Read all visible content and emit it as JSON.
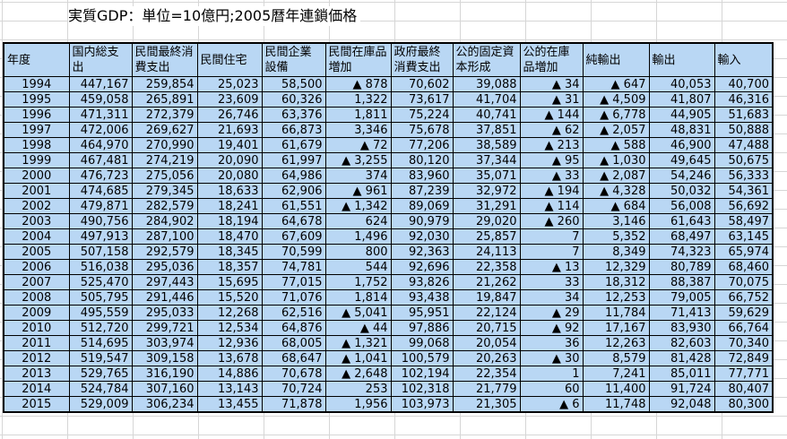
{
  "title": "実質GDP：単位=10億円;2005暦年連鎖価格",
  "headers": [
    "年度",
    "国内総支出",
    "民間最終消費支出",
    "民間住宅",
    "民間企業設備",
    "民間在庫品増加",
    "政府最終消費支出",
    "公的固定資本形成",
    "公的在庫品増加",
    "純輸出",
    "輸出",
    "輸入"
  ],
  "rows": [
    [
      "1994",
      "447,167",
      "259,854",
      "25,023",
      "58,500",
      "▲ 878",
      "70,602",
      "39,088",
      "▲ 34",
      "▲ 647",
      "40,053",
      "40,700"
    ],
    [
      "1995",
      "459,058",
      "265,891",
      "23,609",
      "60,326",
      "1,322",
      "73,617",
      "41,704",
      "▲ 31",
      "▲ 4,509",
      "41,807",
      "46,316"
    ],
    [
      "1996",
      "471,311",
      "272,379",
      "26,746",
      "63,376",
      "1,811",
      "75,224",
      "40,741",
      "▲ 144",
      "▲ 6,778",
      "44,905",
      "51,683"
    ],
    [
      "1997",
      "472,006",
      "269,627",
      "21,693",
      "66,873",
      "3,346",
      "75,678",
      "37,851",
      "▲ 62",
      "▲ 2,057",
      "48,831",
      "50,888"
    ],
    [
      "1998",
      "464,970",
      "270,990",
      "19,401",
      "61,679",
      "▲ 72",
      "77,206",
      "38,589",
      "▲ 213",
      "▲ 588",
      "46,900",
      "47,488"
    ],
    [
      "1999",
      "467,481",
      "274,219",
      "20,090",
      "61,997",
      "▲ 3,255",
      "80,120",
      "37,344",
      "▲ 95",
      "▲ 1,030",
      "49,645",
      "50,675"
    ],
    [
      "2000",
      "476,723",
      "275,056",
      "20,080",
      "64,986",
      "374",
      "83,960",
      "35,071",
      "▲ 33",
      "▲ 2,087",
      "54,246",
      "56,333"
    ],
    [
      "2001",
      "474,685",
      "279,345",
      "18,633",
      "62,906",
      "▲ 961",
      "87,239",
      "32,972",
      "▲ 194",
      "▲ 4,328",
      "50,032",
      "54,361"
    ],
    [
      "2002",
      "479,871",
      "282,579",
      "18,241",
      "61,551",
      "▲ 1,342",
      "89,069",
      "31,291",
      "▲ 114",
      "▲ 684",
      "56,008",
      "56,692"
    ],
    [
      "2003",
      "490,756",
      "284,902",
      "18,194",
      "64,678",
      "624",
      "90,979",
      "29,020",
      "▲ 260",
      "3,146",
      "61,643",
      "58,497"
    ],
    [
      "2004",
      "497,913",
      "287,100",
      "18,470",
      "67,609",
      "1,496",
      "92,030",
      "25,857",
      "7",
      "5,352",
      "68,497",
      "63,145"
    ],
    [
      "2005",
      "507,158",
      "292,579",
      "18,345",
      "70,599",
      "800",
      "92,363",
      "24,113",
      "7",
      "8,349",
      "74,323",
      "65,974"
    ],
    [
      "2006",
      "516,038",
      "295,036",
      "18,357",
      "74,781",
      "544",
      "92,696",
      "22,358",
      "▲ 13",
      "12,329",
      "80,789",
      "68,460"
    ],
    [
      "2007",
      "525,470",
      "297,443",
      "15,695",
      "77,015",
      "1,752",
      "93,826",
      "21,262",
      "33",
      "18,312",
      "88,387",
      "70,075"
    ],
    [
      "2008",
      "505,795",
      "291,446",
      "15,520",
      "71,076",
      "1,814",
      "93,438",
      "19,847",
      "34",
      "12,253",
      "79,005",
      "66,752"
    ],
    [
      "2009",
      "495,559",
      "295,033",
      "12,268",
      "62,516",
      "▲ 5,041",
      "95,951",
      "22,124",
      "▲ 29",
      "11,784",
      "71,413",
      "59,629"
    ],
    [
      "2010",
      "512,720",
      "299,721",
      "12,534",
      "64,876",
      "▲ 44",
      "97,886",
      "20,715",
      "▲ 92",
      "17,167",
      "83,930",
      "66,764"
    ],
    [
      "2011",
      "514,695",
      "303,974",
      "12,936",
      "68,005",
      "▲ 1,321",
      "99,068",
      "20,054",
      "36",
      "12,263",
      "82,603",
      "70,340"
    ],
    [
      "2012",
      "519,547",
      "309,158",
      "13,678",
      "68,647",
      "▲ 1,041",
      "100,579",
      "20,263",
      "▲ 30",
      "8,579",
      "81,428",
      "72,849"
    ],
    [
      "2013",
      "529,765",
      "316,190",
      "14,886",
      "70,678",
      "▲ 2,648",
      "102,194",
      "22,354",
      "1",
      "7,241",
      "85,011",
      "77,771"
    ],
    [
      "2014",
      "524,784",
      "307,160",
      "13,143",
      "70,724",
      "253",
      "102,318",
      "21,779",
      "60",
      "11,400",
      "91,724",
      "80,407"
    ],
    [
      "2015",
      "529,009",
      "306,234",
      "13,455",
      "71,878",
      "1,956",
      "103,973",
      "21,305",
      "▲ 6",
      "11,748",
      "92,048",
      "80,300"
    ]
  ],
  "colors": {
    "cell_fill": "#b9d7f4",
    "border": "#000000",
    "gridline": "#d6d6d6"
  }
}
